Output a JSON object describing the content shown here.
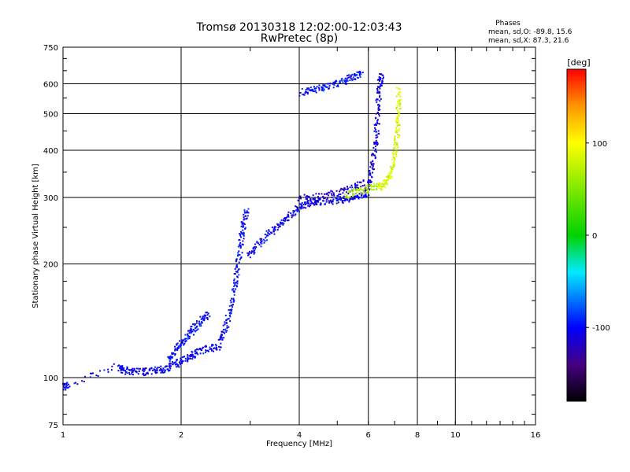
{
  "chart_data": {
    "type": "scatter",
    "title": "Tromsø 20130318 12:02:00-12:03:43",
    "subtitle": "RwPretec (8p)",
    "xlabel": "Frequency [MHz]",
    "ylabel": "Stationary phase Virtual Height [km]",
    "xscale": "log",
    "yscale": "log",
    "xlim": [
      1,
      16
    ],
    "ylim": [
      75,
      750
    ],
    "xticks": [
      1,
      2,
      4,
      6,
      8,
      10,
      16
    ],
    "xtick_labels": [
      "1",
      "2",
      "4",
      "6",
      "8",
      "10",
      "16"
    ],
    "yticks": [
      75,
      100,
      200,
      300,
      400,
      500,
      600,
      750
    ],
    "ytick_labels": [
      "75",
      "100",
      "200",
      "300",
      "400",
      "500",
      "600",
      "750"
    ],
    "grid": true,
    "phase_stats": {
      "heading": "Phases",
      "line_o": "mean, sd,O: -89.8, 15.6",
      "line_x": "mean, sd,X:  87.3, 21.6"
    },
    "colorbar": {
      "label": "[deg]",
      "range": [
        -180,
        180
      ],
      "ticks": [
        100,
        0,
        -100
      ],
      "tick_labels": [
        "100",
        "0",
        "-100"
      ]
    },
    "trace_segments": [
      {
        "name": "low-band",
        "phase": -105,
        "points": [
          [
            1.0,
            95
          ],
          [
            1.02,
            96
          ],
          [
            1.38,
            108
          ],
          [
            1.42,
            105
          ],
          [
            1.5,
            104
          ],
          [
            1.6,
            104
          ],
          [
            1.7,
            105
          ],
          [
            1.8,
            106
          ],
          [
            1.9,
            108
          ],
          [
            2.0,
            111
          ],
          [
            2.1,
            114
          ],
          [
            2.2,
            118
          ],
          [
            2.35,
            120
          ],
          [
            2.5,
            122
          ]
        ]
      },
      {
        "name": "lower-e-rise",
        "phase": -100,
        "points": [
          [
            1.85,
            112
          ],
          [
            1.92,
            118
          ],
          [
            2.0,
            124
          ],
          [
            2.08,
            130
          ],
          [
            2.15,
            136
          ],
          [
            2.25,
            142
          ],
          [
            2.35,
            148
          ]
        ]
      },
      {
        "name": "e-cusp",
        "phase": -100,
        "points": [
          [
            2.5,
            125
          ],
          [
            2.58,
            135
          ],
          [
            2.65,
            150
          ],
          [
            2.72,
            170
          ],
          [
            2.76,
            190
          ],
          [
            2.8,
            210
          ],
          [
            2.84,
            235
          ],
          [
            2.88,
            260
          ],
          [
            2.92,
            280
          ]
        ]
      },
      {
        "name": "f1-mid",
        "phase": -105,
        "points": [
          [
            2.95,
            210
          ],
          [
            3.1,
            225
          ],
          [
            3.3,
            240
          ],
          [
            3.5,
            252
          ],
          [
            3.7,
            265
          ],
          [
            3.9,
            278
          ],
          [
            4.1,
            288
          ],
          [
            4.3,
            292
          ],
          [
            4.5,
            294
          ],
          [
            4.8,
            295
          ],
          [
            5.1,
            297
          ],
          [
            5.4,
            300
          ],
          [
            5.7,
            305
          ],
          [
            5.95,
            312
          ]
        ]
      },
      {
        "name": "f1-upper",
        "phase": -115,
        "points": [
          [
            4.0,
            300
          ],
          [
            4.5,
            303
          ],
          [
            5.0,
            310
          ],
          [
            5.4,
            318
          ],
          [
            5.8,
            330
          ]
        ]
      },
      {
        "name": "f2-o-trace",
        "phase": -110,
        "points": [
          [
            5.9,
            315
          ],
          [
            6.05,
            340
          ],
          [
            6.15,
            380
          ],
          [
            6.25,
            430
          ],
          [
            6.3,
            490
          ],
          [
            6.35,
            560
          ],
          [
            6.4,
            610
          ],
          [
            6.45,
            640
          ]
        ]
      },
      {
        "name": "f2-x-trace",
        "phase": 85,
        "points": [
          [
            6.4,
            320
          ],
          [
            6.6,
            330
          ],
          [
            6.8,
            345
          ],
          [
            6.95,
            380
          ],
          [
            7.05,
            420
          ],
          [
            7.1,
            470
          ],
          [
            7.12,
            520
          ],
          [
            7.15,
            580
          ]
        ]
      },
      {
        "name": "f2-x-lower",
        "phase": 70,
        "points": [
          [
            5.2,
            305
          ],
          [
            5.6,
            312
          ],
          [
            6.0,
            318
          ],
          [
            6.4,
            325
          ]
        ]
      },
      {
        "name": "top-return",
        "phase": -95,
        "points": [
          [
            4.0,
            570
          ],
          [
            4.3,
            580
          ],
          [
            4.6,
            590
          ],
          [
            4.9,
            600
          ],
          [
            5.2,
            615
          ],
          [
            5.5,
            630
          ],
          [
            5.8,
            645
          ]
        ]
      }
    ]
  }
}
